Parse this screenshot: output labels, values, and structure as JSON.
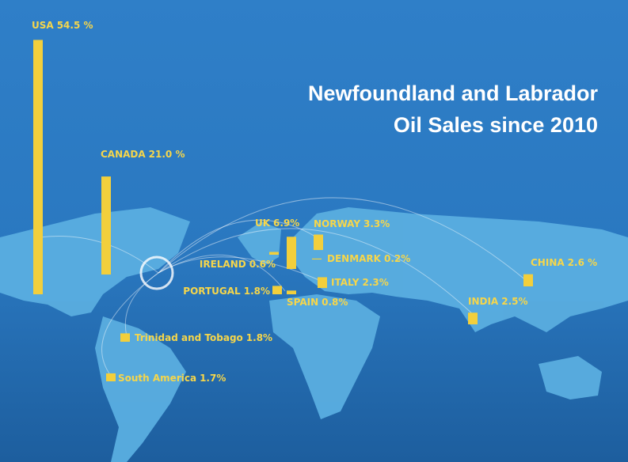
{
  "chart_data": {
    "type": "bar",
    "title": [
      "Newfoundland and Labrador",
      "Oil Sales since 2010"
    ],
    "categories": [
      "USA",
      "CANADA",
      "UK",
      "NORWAY",
      "IRELAND",
      "DENMARK",
      "PORTUGAL",
      "SPAIN",
      "ITALY",
      "CHINA",
      "INDIA",
      "Trinidad and Tobago",
      "South America"
    ],
    "values": [
      54.5,
      21.0,
      6.9,
      3.3,
      0.6,
      0.2,
      1.8,
      0.8,
      2.3,
      2.6,
      2.5,
      1.8,
      1.7
    ],
    "value_labels": [
      "54.5 %",
      "21.0 %",
      "6.9%",
      "3.3%",
      "0.6%",
      "0.2%",
      "1.8%",
      "0.8%",
      "2.3%",
      "2.6 %",
      "2.5%",
      "1.8%",
      "1.7%"
    ],
    "color": "#f2cf3c"
  }
}
